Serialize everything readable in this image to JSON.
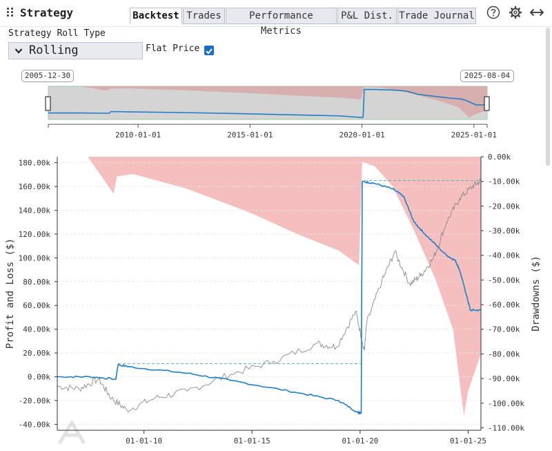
{
  "header": {
    "title": "Strategy",
    "tabs": [
      {
        "label": "Backtest",
        "active": true
      },
      {
        "label": "Trades",
        "active": false
      },
      {
        "label": "Performance Metrics",
        "active": false
      },
      {
        "label": "P&L Dist.",
        "active": false
      },
      {
        "label": "Trade Journal",
        "active": false
      }
    ],
    "icons": [
      "help-icon",
      "gear-icon",
      "expand-horizontal-icon"
    ]
  },
  "controls": {
    "roll_type_label": "Strategy Roll Type",
    "roll_type_value": "Rolling",
    "flat_price_label": "Flat Price",
    "flat_price_checked": true
  },
  "navigator": {
    "start_date": "2005-12-30",
    "end_date": "2025-08-04",
    "ticks": [
      "2010-01-01",
      "2015-01-01",
      "2020-01-01",
      "2025-01-01"
    ]
  },
  "chart_data": {
    "type": "line",
    "xlabel": "",
    "ylabel": "Profit and Loss ($)",
    "y2label": "Drawdowns ($)",
    "x_ticks": [
      "01-01-10",
      "01-01-15",
      "01-01-20",
      "01-01-25"
    ],
    "y_ticks": [
      "180.00k",
      "160.00k",
      "140.00k",
      "120.00k",
      "100.00k",
      "80.00k",
      "60.00k",
      "40.00k",
      "20.00k",
      "0.00k",
      "-20.00k",
      "-40.00k"
    ],
    "y2_ticks": [
      "0.00k",
      "-10.00k",
      "-20.00k",
      "-30.00k",
      "-40.00k",
      "-50.00k",
      "-60.00k",
      "-70.00k",
      "-80.00k",
      "-90.00k",
      "-100.00k",
      "-110.00k"
    ],
    "ylim": [
      -45000,
      185000
    ],
    "y2lim": [
      -111000,
      0
    ],
    "colors": {
      "pnl": "#1f7fc4",
      "drawdown": "#f4b4b4",
      "price": "#8a8a8a",
      "navigator_bg": "#d4d4d4"
    },
    "series": [
      {
        "key": "pnl",
        "x": [
          2005.99,
          2007.5,
          2008.7,
          2008.8,
          2009.5,
          2012.0,
          2014.0,
          2017.0,
          2019.0,
          2019.9,
          2020.05,
          2020.1,
          2020.6,
          2021.5,
          2022.0,
          2022.5,
          2023.0,
          2024.0,
          2024.4,
          2024.6,
          2024.9,
          2025.1,
          2025.59
        ],
        "y": [
          0,
          0,
          -2000,
          10000,
          8000,
          3000,
          -3000,
          -13000,
          -20000,
          -30000,
          -30000,
          164000,
          163000,
          158000,
          152000,
          130000,
          120000,
          102000,
          98000,
          90000,
          70000,
          56000,
          56000
        ]
      },
      {
        "key": "drawdown",
        "x": [
          2005.99,
          2007.4,
          2008.6,
          2008.75,
          2009.5,
          2012.0,
          2015.0,
          2017.0,
          2019.0,
          2019.95,
          2020.1,
          2020.7,
          2021.5,
          2022.5,
          2023.5,
          2024.3,
          2024.8,
          2025.0,
          2025.59
        ],
        "y": [
          0,
          0,
          -15000,
          -8000,
          -7000,
          -13000,
          -23000,
          -31000,
          -38000,
          -44000,
          -2000,
          -4000,
          -12000,
          -30000,
          -50000,
          -70000,
          -105000,
          -95000,
          -80000
        ]
      },
      {
        "key": "price",
        "x": [
          2005.99,
          2007.0,
          2007.9,
          2008.5,
          2009.2,
          2010.5,
          2012.0,
          2014.0,
          2016.0,
          2018.0,
          2018.9,
          2019.8,
          2020.2,
          2020.3,
          2021.0,
          2021.6,
          2022.3,
          2022.8,
          2023.4,
          2024.0,
          2024.6,
          2025.2,
          2025.59
        ],
        "y": [
          -8000,
          -10000,
          -2000,
          -18000,
          -28000,
          -18000,
          -12000,
          2000,
          13000,
          28000,
          25000,
          55000,
          22000,
          45000,
          80000,
          105000,
          78000,
          85000,
          100000,
          130000,
          150000,
          160000,
          165000
        ]
      }
    ]
  }
}
